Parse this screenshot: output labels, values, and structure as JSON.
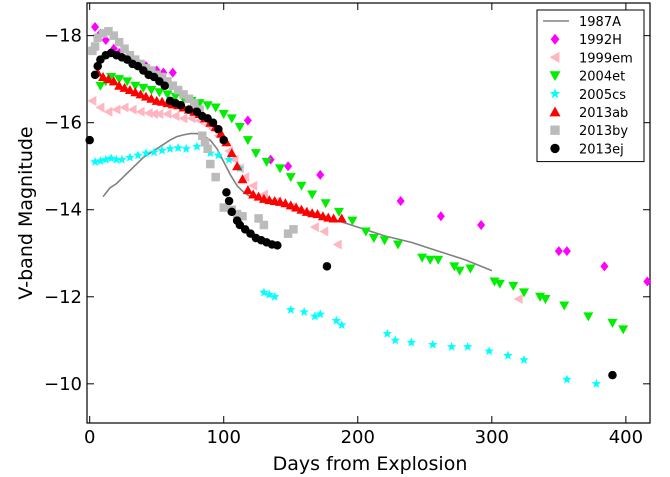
{
  "chart_data": {
    "type": "scatter",
    "xlabel": "Days from Explosion",
    "ylabel": "V-band Magnitude",
    "xlim": [
      -2,
      418
    ],
    "ylim": [
      -18.75,
      -9.1
    ],
    "y_inverted": true,
    "grid": false,
    "legend_position": "top-right",
    "x_ticks": [
      0,
      100,
      200,
      300,
      400
    ],
    "y_ticks": [
      -18,
      -16,
      -14,
      -12,
      -10
    ],
    "series": [
      {
        "name": "1987A",
        "kind": "line",
        "color": "#808080",
        "points": [
          [
            10,
            -14.3
          ],
          [
            15,
            -14.5
          ],
          [
            20,
            -14.6
          ],
          [
            25,
            -14.75
          ],
          [
            30,
            -14.9
          ],
          [
            35,
            -15.05
          ],
          [
            40,
            -15.2
          ],
          [
            45,
            -15.3
          ],
          [
            50,
            -15.4
          ],
          [
            55,
            -15.5
          ],
          [
            60,
            -15.6
          ],
          [
            65,
            -15.68
          ],
          [
            70,
            -15.72
          ],
          [
            75,
            -15.75
          ],
          [
            80,
            -15.75
          ],
          [
            85,
            -15.7
          ],
          [
            90,
            -15.6
          ],
          [
            95,
            -15.4
          ],
          [
            100,
            -15.1
          ],
          [
            105,
            -14.8
          ],
          [
            110,
            -14.55
          ],
          [
            115,
            -14.4
          ],
          [
            120,
            -14.3
          ],
          [
            130,
            -14.25
          ],
          [
            140,
            -14.2
          ],
          [
            150,
            -14.1
          ],
          [
            160,
            -14.0
          ],
          [
            170,
            -13.9
          ],
          [
            180,
            -13.8
          ],
          [
            200,
            -13.6
          ],
          [
            220,
            -13.4
          ],
          [
            240,
            -13.25
          ],
          [
            260,
            -13.05
          ],
          [
            280,
            -12.85
          ],
          [
            300,
            -12.6
          ]
        ]
      },
      {
        "name": "1992H",
        "kind": "marker",
        "marker": "diamond",
        "color": "#ff00ff",
        "points": [
          [
            4,
            -18.2
          ],
          [
            8,
            -18.05
          ],
          [
            12,
            -17.9
          ],
          [
            18,
            -17.7
          ],
          [
            22,
            -17.6
          ],
          [
            28,
            -17.5
          ],
          [
            35,
            -17.4
          ],
          [
            42,
            -17.3
          ],
          [
            50,
            -17.2
          ],
          [
            55,
            -17.15
          ],
          [
            62,
            -17.15
          ],
          [
            118,
            -16.05
          ],
          [
            135,
            -15.15
          ],
          [
            148,
            -15.0
          ],
          [
            172,
            -14.8
          ],
          [
            232,
            -14.2
          ],
          [
            262,
            -13.85
          ],
          [
            292,
            -13.65
          ],
          [
            350,
            -13.05
          ],
          [
            356,
            -13.05
          ],
          [
            384,
            -12.7
          ],
          [
            416,
            -12.35
          ]
        ]
      },
      {
        "name": "1999em",
        "kind": "marker",
        "marker": "triangle-left",
        "color": "#ffb6c1",
        "points": [
          [
            2,
            -16.5
          ],
          [
            8,
            -16.35
          ],
          [
            14,
            -16.25
          ],
          [
            20,
            -16.3
          ],
          [
            26,
            -16.35
          ],
          [
            32,
            -16.3
          ],
          [
            38,
            -16.25
          ],
          [
            44,
            -16.22
          ],
          [
            48,
            -16.2
          ],
          [
            52,
            -16.2
          ],
          [
            58,
            -16.2
          ],
          [
            64,
            -16.15
          ],
          [
            70,
            -16.1
          ],
          [
            76,
            -16.1
          ],
          [
            82,
            -16.05
          ],
          [
            88,
            -15.95
          ],
          [
            92,
            -15.85
          ],
          [
            96,
            -15.7
          ],
          [
            100,
            -15.55
          ],
          [
            104,
            -15.35
          ],
          [
            108,
            -15.15
          ],
          [
            112,
            -14.95
          ],
          [
            116,
            -14.75
          ],
          [
            122,
            -14.55
          ],
          [
            130,
            -14.35
          ],
          [
            140,
            -14.2
          ],
          [
            150,
            -14.05
          ],
          [
            160,
            -13.95
          ],
          [
            168,
            -13.6
          ],
          [
            175,
            -13.5
          ],
          [
            185,
            -13.2
          ],
          [
            320,
            -11.95
          ]
        ]
      },
      {
        "name": "2004et",
        "kind": "marker",
        "marker": "triangle-down",
        "color": "#00ee00",
        "points": [
          [
            8,
            -16.85
          ],
          [
            12,
            -16.95
          ],
          [
            16,
            -17.05
          ],
          [
            22,
            -17.0
          ],
          [
            28,
            -16.95
          ],
          [
            34,
            -16.85
          ],
          [
            40,
            -16.8
          ],
          [
            46,
            -16.75
          ],
          [
            52,
            -16.7
          ],
          [
            58,
            -16.65
          ],
          [
            64,
            -16.6
          ],
          [
            70,
            -16.55
          ],
          [
            76,
            -16.5
          ],
          [
            82,
            -16.45
          ],
          [
            88,
            -16.4
          ],
          [
            94,
            -16.35
          ],
          [
            100,
            -16.2
          ],
          [
            106,
            -16.1
          ],
          [
            112,
            -15.9
          ],
          [
            118,
            -15.6
          ],
          [
            124,
            -15.3
          ],
          [
            132,
            -15.1
          ],
          [
            142,
            -14.95
          ],
          [
            150,
            -14.75
          ],
          [
            158,
            -14.55
          ],
          [
            166,
            -14.35
          ],
          [
            176,
            -14.15
          ],
          [
            186,
            -13.95
          ],
          [
            196,
            -13.75
          ],
          [
            206,
            -13.5
          ],
          [
            212,
            -13.35
          ],
          [
            220,
            -13.3
          ],
          [
            230,
            -13.2
          ],
          [
            248,
            -12.9
          ],
          [
            254,
            -12.85
          ],
          [
            260,
            -12.85
          ],
          [
            272,
            -12.7
          ],
          [
            276,
            -12.6
          ],
          [
            284,
            -12.65
          ],
          [
            302,
            -12.35
          ],
          [
            306,
            -12.3
          ],
          [
            316,
            -12.25
          ],
          [
            324,
            -12.1
          ],
          [
            336,
            -12.0
          ],
          [
            340,
            -11.95
          ],
          [
            354,
            -11.8
          ],
          [
            372,
            -11.55
          ],
          [
            390,
            -11.4
          ],
          [
            398,
            -11.25
          ]
        ]
      },
      {
        "name": "2005cs",
        "kind": "marker",
        "marker": "star",
        "color": "#00ffff",
        "points": [
          [
            4,
            -15.1
          ],
          [
            8,
            -15.12
          ],
          [
            12,
            -15.15
          ],
          [
            16,
            -15.18
          ],
          [
            20,
            -15.15
          ],
          [
            24,
            -15.15
          ],
          [
            30,
            -15.2
          ],
          [
            36,
            -15.25
          ],
          [
            42,
            -15.3
          ],
          [
            48,
            -15.32
          ],
          [
            54,
            -15.36
          ],
          [
            60,
            -15.4
          ],
          [
            66,
            -15.42
          ],
          [
            72,
            -15.4
          ],
          [
            80,
            -15.45
          ],
          [
            90,
            -15.3
          ],
          [
            96,
            -15.25
          ],
          [
            104,
            -15.15
          ],
          [
            112,
            -14.95
          ],
          [
            130,
            -12.1
          ],
          [
            134,
            -12.05
          ],
          [
            138,
            -12.0
          ],
          [
            150,
            -11.7
          ],
          [
            160,
            -11.65
          ],
          [
            168,
            -11.55
          ],
          [
            172,
            -11.6
          ],
          [
            184,
            -11.45
          ],
          [
            188,
            -11.35
          ],
          [
            222,
            -11.15
          ],
          [
            228,
            -11.0
          ],
          [
            240,
            -10.95
          ],
          [
            256,
            -10.9
          ],
          [
            270,
            -10.85
          ],
          [
            282,
            -10.85
          ],
          [
            298,
            -10.75
          ],
          [
            312,
            -10.65
          ],
          [
            324,
            -10.55
          ],
          [
            356,
            -10.1
          ],
          [
            378,
            -10.0
          ]
        ]
      },
      {
        "name": "2013ab",
        "kind": "marker",
        "marker": "triangle-up",
        "color": "#ff0000",
        "points": [
          [
            6,
            -17.15
          ],
          [
            10,
            -17.05
          ],
          [
            14,
            -17.0
          ],
          [
            18,
            -16.95
          ],
          [
            22,
            -16.85
          ],
          [
            26,
            -16.8
          ],
          [
            30,
            -16.75
          ],
          [
            34,
            -16.7
          ],
          [
            38,
            -16.65
          ],
          [
            42,
            -16.6
          ],
          [
            46,
            -16.55
          ],
          [
            50,
            -16.5
          ],
          [
            54,
            -16.48
          ],
          [
            58,
            -16.45
          ],
          [
            62,
            -16.42
          ],
          [
            66,
            -16.4
          ],
          [
            70,
            -16.35
          ],
          [
            74,
            -16.3
          ],
          [
            78,
            -16.25
          ],
          [
            82,
            -16.2
          ],
          [
            86,
            -16.1
          ],
          [
            90,
            -16.0
          ],
          [
            94,
            -15.9
          ],
          [
            98,
            -15.75
          ],
          [
            102,
            -15.55
          ],
          [
            106,
            -15.3
          ],
          [
            110,
            -15.0
          ],
          [
            114,
            -14.7
          ],
          [
            118,
            -14.45
          ],
          [
            122,
            -14.35
          ],
          [
            126,
            -14.3
          ],
          [
            130,
            -14.25
          ],
          [
            134,
            -14.22
          ],
          [
            138,
            -14.2
          ],
          [
            142,
            -14.18
          ],
          [
            146,
            -14.15
          ],
          [
            150,
            -14.1
          ],
          [
            154,
            -14.05
          ],
          [
            158,
            -14.0
          ],
          [
            162,
            -13.95
          ],
          [
            166,
            -13.92
          ],
          [
            170,
            -13.9
          ],
          [
            174,
            -13.85
          ],
          [
            178,
            -13.82
          ],
          [
            182,
            -13.8
          ],
          [
            188,
            -13.8
          ]
        ]
      },
      {
        "name": "2013by",
        "kind": "marker",
        "marker": "square",
        "color": "#bbbbbb",
        "points": [
          [
            2,
            -17.65
          ],
          [
            4,
            -17.75
          ],
          [
            6,
            -17.95
          ],
          [
            10,
            -18.05
          ],
          [
            14,
            -18.1
          ],
          [
            18,
            -18.0
          ],
          [
            22,
            -17.85
          ],
          [
            26,
            -17.7
          ],
          [
            30,
            -17.55
          ],
          [
            34,
            -17.45
          ],
          [
            38,
            -17.35
          ],
          [
            42,
            -17.25
          ],
          [
            46,
            -17.2
          ],
          [
            50,
            -17.1
          ],
          [
            54,
            -17.05
          ],
          [
            58,
            -16.95
          ],
          [
            62,
            -16.85
          ],
          [
            66,
            -16.75
          ],
          [
            70,
            -16.65
          ],
          [
            74,
            -16.55
          ],
          [
            78,
            -16.45
          ],
          [
            82,
            -16.3
          ],
          [
            84,
            -15.7
          ],
          [
            86,
            -15.55
          ],
          [
            88,
            -15.4
          ],
          [
            90,
            -15.05
          ],
          [
            94,
            -14.75
          ],
          [
            100,
            -14.05
          ],
          [
            106,
            -14.0
          ],
          [
            110,
            -13.9
          ],
          [
            114,
            -13.85
          ],
          [
            126,
            -13.8
          ],
          [
            130,
            -13.65
          ],
          [
            148,
            -13.45
          ],
          [
            152,
            -13.55
          ]
        ]
      },
      {
        "name": "2013ej",
        "kind": "marker",
        "marker": "circle",
        "color": "#000000",
        "points": [
          [
            0,
            -15.6
          ],
          [
            4,
            -17.1
          ],
          [
            6,
            -17.3
          ],
          [
            8,
            -17.45
          ],
          [
            12,
            -17.55
          ],
          [
            16,
            -17.6
          ],
          [
            20,
            -17.55
          ],
          [
            24,
            -17.5
          ],
          [
            28,
            -17.45
          ],
          [
            32,
            -17.35
          ],
          [
            36,
            -17.3
          ],
          [
            40,
            -17.2
          ],
          [
            44,
            -17.1
          ],
          [
            48,
            -17.05
          ],
          [
            52,
            -16.95
          ],
          [
            56,
            -16.85
          ],
          [
            60,
            -16.5
          ],
          [
            64,
            -16.45
          ],
          [
            68,
            -16.4
          ],
          [
            74,
            -16.3
          ],
          [
            80,
            -16.25
          ],
          [
            84,
            -16.15
          ],
          [
            88,
            -16.1
          ],
          [
            92,
            -16.0
          ],
          [
            96,
            -15.85
          ],
          [
            100,
            -15.6
          ],
          [
            102,
            -14.4
          ],
          [
            104,
            -14.2
          ],
          [
            106,
            -13.95
          ],
          [
            110,
            -13.75
          ],
          [
            112,
            -13.65
          ],
          [
            116,
            -13.55
          ],
          [
            120,
            -13.45
          ],
          [
            124,
            -13.35
          ],
          [
            128,
            -13.3
          ],
          [
            132,
            -13.25
          ],
          [
            136,
            -13.2
          ],
          [
            140,
            -13.18
          ],
          [
            177,
            -12.7
          ],
          [
            390,
            -10.2
          ]
        ]
      }
    ]
  }
}
